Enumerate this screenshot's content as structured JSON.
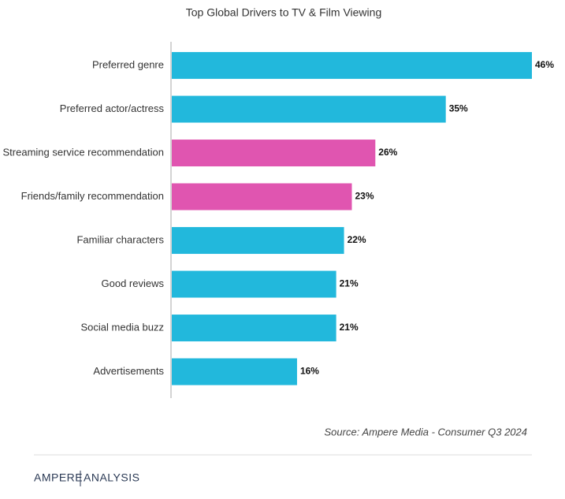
{
  "chart_data": {
    "type": "bar",
    "orientation": "horizontal",
    "title": "Top Global Drivers to TV & Film Viewing",
    "categories": [
      "Preferred genre",
      "Preferred actor/actress",
      "Streaming service recommendation",
      "Friends/family recommendation",
      "Familiar characters",
      "Good reviews",
      "Social media buzz",
      "Advertisements"
    ],
    "values": [
      46,
      35,
      26,
      23,
      22,
      21,
      21,
      16
    ],
    "value_labels": [
      "46%",
      "35%",
      "26%",
      "23%",
      "22%",
      "21%",
      "21%",
      "16%"
    ],
    "colors": [
      "#22b8dc",
      "#22b8dc",
      "#e055b0",
      "#e055b0",
      "#22b8dc",
      "#22b8dc",
      "#22b8dc",
      "#22b8dc"
    ],
    "source": "Source: Ampere Media - Consumer Q3 2024"
  },
  "brand": {
    "left": "AMPERE",
    "right": "ANALYSIS"
  }
}
